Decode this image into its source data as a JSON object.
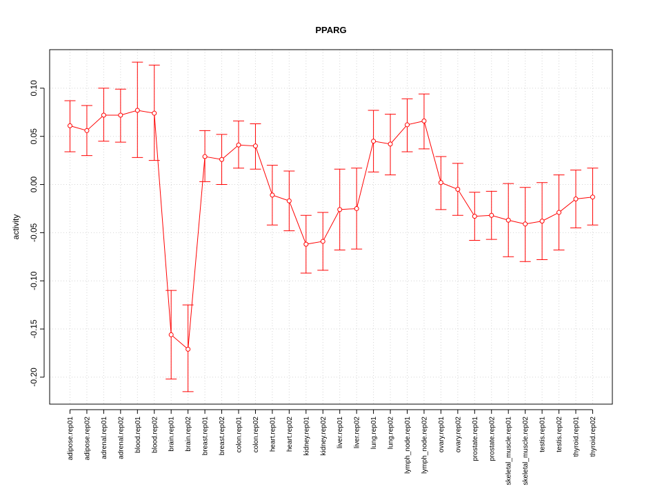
{
  "colors": {
    "series": "#ff0000",
    "grid": "#d3d3d3",
    "axis": "#000000",
    "background": "#ffffff"
  },
  "chart_data": {
    "type": "line",
    "title": "PPARG",
    "xlabel": "",
    "ylabel": "activity",
    "ylim": [
      -0.228,
      0.14
    ],
    "y_ticks": [
      -0.2,
      -0.15,
      -0.1,
      -0.05,
      0.0,
      0.05,
      0.1
    ],
    "y_tick_labels": [
      "-0.20",
      "-0.15",
      "-0.10",
      "-0.05",
      "0.00",
      "0.05",
      "0.10"
    ],
    "grid": true,
    "error_bars": true,
    "categories": [
      "adipose.rep01",
      "adipose.rep02",
      "adrenal.rep01",
      "adrenal.rep02",
      "blood.rep01",
      "blood.rep02",
      "brain.rep01",
      "brain.rep02",
      "breast.rep01",
      "breast.rep02",
      "colon.rep01",
      "colon.rep02",
      "heart.rep01",
      "heart.rep02",
      "kidney.rep01",
      "kidney.rep02",
      "liver.rep01",
      "liver.rep02",
      "lung.rep01",
      "lung.rep02",
      "lymph_node.rep01",
      "lymph_node.rep02",
      "ovary.rep01",
      "ovary.rep02",
      "prostate.rep01",
      "prostate.rep02",
      "skeletal_muscle.rep01",
      "skeletal_muscle.rep02",
      "testis.rep01",
      "testis.rep02",
      "thyroid.rep01",
      "thyroid.rep02"
    ],
    "series": [
      {
        "name": "PPARG",
        "values": [
          0.061,
          0.056,
          0.072,
          0.072,
          0.077,
          0.074,
          -0.156,
          -0.171,
          0.029,
          0.026,
          0.041,
          0.04,
          -0.011,
          -0.017,
          -0.062,
          -0.059,
          -0.026,
          -0.025,
          0.045,
          0.042,
          0.062,
          0.066,
          0.002,
          -0.005,
          -0.033,
          -0.032,
          -0.037,
          -0.041,
          -0.038,
          -0.029,
          -0.015,
          -0.013
        ],
        "upper": [
          0.087,
          0.082,
          0.1,
          0.099,
          0.127,
          0.124,
          -0.11,
          -0.125,
          0.056,
          0.052,
          0.066,
          0.063,
          0.02,
          0.014,
          -0.032,
          -0.029,
          0.016,
          0.017,
          0.077,
          0.073,
          0.089,
          0.094,
          0.029,
          0.022,
          -0.008,
          -0.007,
          0.001,
          -0.003,
          0.002,
          0.01,
          0.015,
          0.017
        ],
        "lower": [
          0.034,
          0.03,
          0.045,
          0.044,
          0.028,
          0.025,
          -0.202,
          -0.215,
          0.003,
          0.0,
          0.017,
          0.016,
          -0.042,
          -0.048,
          -0.092,
          -0.089,
          -0.068,
          -0.067,
          0.013,
          0.01,
          0.034,
          0.037,
          -0.026,
          -0.032,
          -0.058,
          -0.057,
          -0.075,
          -0.08,
          -0.078,
          -0.068,
          -0.045,
          -0.042
        ]
      }
    ]
  }
}
